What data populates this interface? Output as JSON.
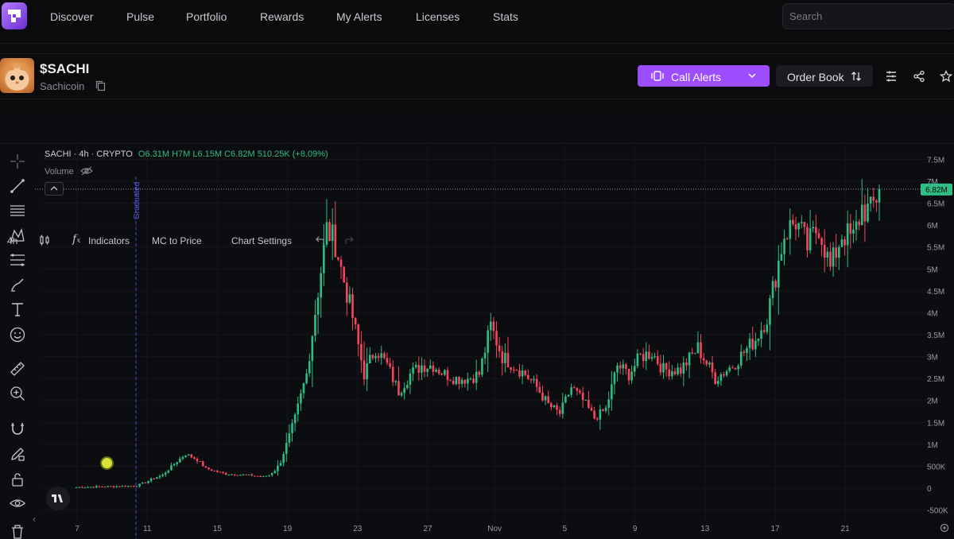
{
  "nav": {
    "items": [
      "Discover",
      "Pulse",
      "Portfolio",
      "Rewards",
      "My Alerts",
      "Licenses",
      "Stats"
    ],
    "search_placeholder": "Search"
  },
  "token": {
    "ticker": "$SACHI",
    "name": "Sachicoin",
    "call_alerts_label": "Call Alerts",
    "order_book_label": "Order Book"
  },
  "toolbar": {
    "interval": "4h",
    "indicators_label": "Indicators",
    "mc_label": "MC to Price",
    "settings_label": "Chart Settings"
  },
  "legend": {
    "symbol": "SACHI · 4h · CRYPTO",
    "ohlc": "O6.31M H7M L6.15M C6.82M 510.25K (+8.09%)",
    "volume_label": "Volume",
    "graduated_label": "Graduated"
  },
  "colors": {
    "accent": "#9b4dff",
    "up": "#2ebd85",
    "down": "#f6465d",
    "price_label_bg": "#2ebd85"
  },
  "chart_data": {
    "type": "candlestick",
    "y_ticks": [
      "7.5M",
      "7M",
      "6.5M",
      "6M",
      "5.5M",
      "5M",
      "4.5M",
      "4M",
      "3.5M",
      "3M",
      "2.5M",
      "2M",
      "1.5M",
      "1M",
      "500K",
      "0",
      "-500K"
    ],
    "y_tick_values": [
      7500000,
      7000000,
      6500000,
      6000000,
      5500000,
      5000000,
      4500000,
      4000000,
      3500000,
      3000000,
      2500000,
      2000000,
      1500000,
      1000000,
      500000,
      0,
      -500000
    ],
    "x_ticks": [
      "7",
      "11",
      "15",
      "19",
      "23",
      "27",
      "Nov",
      "5",
      "9",
      "13",
      "17",
      "21"
    ],
    "ylim": [
      -650000,
      7800000
    ],
    "last_price_label": "6.82M",
    "last_price": 6820000,
    "grid": true,
    "waypoints_x": [
      0,
      20,
      21,
      24,
      26,
      30,
      34,
      38,
      42,
      45,
      52,
      59,
      65,
      67,
      69,
      71,
      73,
      76,
      80,
      84,
      87,
      90,
      92,
      96,
      100,
      104,
      108,
      112,
      116,
      120,
      124,
      128,
      132,
      136,
      140,
      144,
      148,
      152,
      156,
      160,
      164,
      168,
      172,
      176,
      180,
      184,
      188,
      192,
      196,
      200,
      204,
      210,
      216,
      222,
      228,
      232,
      236,
      240,
      246,
      250,
      254,
      258,
      262,
      266,
      270,
      273,
      276,
      279
    ],
    "waypoints_y": [
      20000,
      50000,
      60000,
      130000,
      200000,
      300000,
      550000,
      780000,
      650000,
      450000,
      320000,
      300000,
      260000,
      300000,
      400000,
      600000,
      1000000,
      1600000,
      2600000,
      4500000,
      5900000,
      5600000,
      5000000,
      3900000,
      2600000,
      3200000,
      2800000,
      2200000,
      2600000,
      2800000,
      2800000,
      2600000,
      2500000,
      2500000,
      2600000,
      3700000,
      3000000,
      2800000,
      2600000,
      2300000,
      1900000,
      1700000,
      2300000,
      2000000,
      1600000,
      1800000,
      2800000,
      2600000,
      3000000,
      3100000,
      2700000,
      2700000,
      3200000,
      2500000,
      2800000,
      3100000,
      3400000,
      3900000,
      5800000,
      6100000,
      5500000,
      6000000,
      5000000,
      5800000,
      5700000,
      6400000,
      6300000,
      6820000
    ]
  }
}
